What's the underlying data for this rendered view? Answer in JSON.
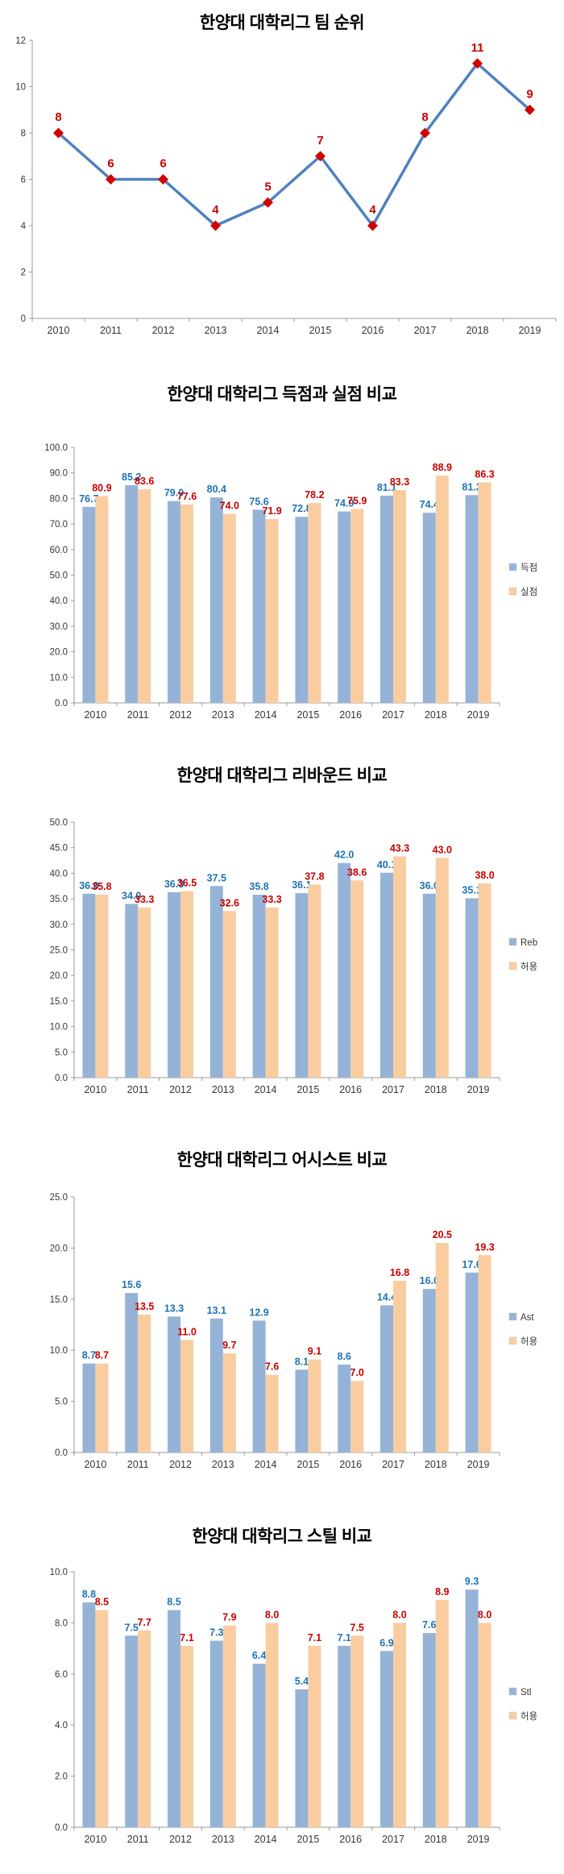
{
  "colors": {
    "line": "#4f81bd",
    "marker": "#d00000",
    "bar_primary": "#95b3d7",
    "bar_secondary": "#facda0",
    "label_primary": "#1e73b4",
    "label_secondary": "#c80000",
    "axis": "#9a9a9a",
    "tick_text": "#363636"
  },
  "chart_data": [
    {
      "type": "line",
      "title": "한양대 대학리그 팀 순위",
      "categories": [
        "2010",
        "2011",
        "2012",
        "2013",
        "2014",
        "2015",
        "2016",
        "2017",
        "2018",
        "2019"
      ],
      "values": [
        8,
        6,
        6,
        4,
        5,
        7,
        4,
        8,
        11,
        9
      ],
      "ylim": [
        0,
        12
      ],
      "ystep": 2,
      "tick_decimals": 0,
      "label_decimals": 0,
      "grid": false,
      "legend": null
    },
    {
      "type": "bar",
      "title": "한양대 대학리그 득점과 실점 비교",
      "categories": [
        "2010",
        "2011",
        "2012",
        "2013",
        "2014",
        "2015",
        "2016",
        "2017",
        "2018",
        "2019"
      ],
      "series": [
        {
          "name": "득점",
          "values": [
            76.7,
            85.2,
            79.0,
            80.4,
            75.6,
            72.8,
            74.9,
            81.1,
            74.4,
            81.3
          ]
        },
        {
          "name": "실점",
          "values": [
            80.9,
            83.6,
            77.6,
            74.0,
            71.9,
            78.2,
            75.9,
            83.3,
            88.9,
            86.3
          ]
        }
      ],
      "ylim": [
        0,
        100
      ],
      "ystep": 10,
      "tick_decimals": 1,
      "label_decimals": 1,
      "grid": false,
      "legend_position": "right"
    },
    {
      "type": "bar",
      "title": "한양대 대학리그 리바운드 비교",
      "categories": [
        "2010",
        "2011",
        "2012",
        "2013",
        "2014",
        "2015",
        "2016",
        "2017",
        "2018",
        "2019"
      ],
      "series": [
        {
          "name": "Reb",
          "values": [
            36.0,
            34.0,
            36.3,
            37.5,
            35.8,
            36.1,
            42.0,
            40.1,
            36.0,
            35.1
          ]
        },
        {
          "name": "허용",
          "values": [
            35.8,
            33.3,
            36.5,
            32.6,
            33.3,
            37.8,
            38.6,
            43.3,
            43.0,
            38.0
          ]
        }
      ],
      "ylim": [
        0,
        50
      ],
      "ystep": 5,
      "tick_decimals": 1,
      "label_decimals": 1,
      "grid": false,
      "legend_position": "right"
    },
    {
      "type": "bar",
      "title": "한양대 대학리그 어시스트 비교",
      "categories": [
        "2010",
        "2011",
        "2012",
        "2013",
        "2014",
        "2015",
        "2016",
        "2017",
        "2018",
        "2019"
      ],
      "series": [
        {
          "name": "Ast",
          "values": [
            8.7,
            15.6,
            13.3,
            13.1,
            12.9,
            8.1,
            8.6,
            14.4,
            16.0,
            17.6
          ]
        },
        {
          "name": "허용",
          "values": [
            8.7,
            13.5,
            11.0,
            9.7,
            7.6,
            9.1,
            7.0,
            16.8,
            20.5,
            19.3
          ]
        }
      ],
      "ylim": [
        0,
        25
      ],
      "ystep": 5,
      "tick_decimals": 1,
      "label_decimals": 1,
      "grid": false,
      "legend_position": "right"
    },
    {
      "type": "bar",
      "title": "한양대 대학리그 스틸 비교",
      "categories": [
        "2010",
        "2011",
        "2012",
        "2013",
        "2014",
        "2015",
        "2016",
        "2017",
        "2018",
        "2019"
      ],
      "series": [
        {
          "name": "Stl",
          "values": [
            8.8,
            7.5,
            8.5,
            7.3,
            6.4,
            5.4,
            7.1,
            6.9,
            7.6,
            9.3
          ]
        },
        {
          "name": "허용",
          "values": [
            8.5,
            7.7,
            7.1,
            7.9,
            8.0,
            7.1,
            7.5,
            8.0,
            8.9,
            8.0
          ]
        }
      ],
      "ylim": [
        0,
        10
      ],
      "ystep": 2,
      "tick_decimals": 1,
      "label_decimals": 1,
      "grid": false,
      "legend_position": "right"
    }
  ]
}
